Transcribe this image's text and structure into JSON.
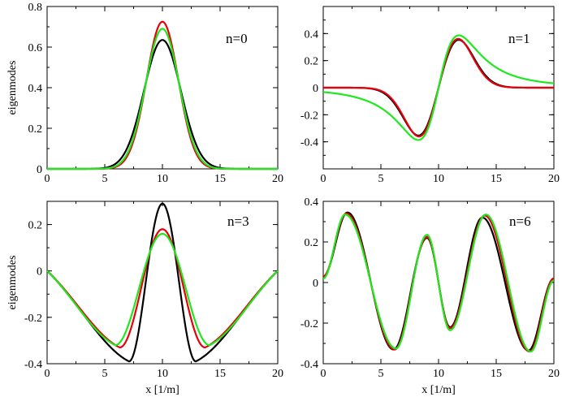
{
  "chart_data": [
    {
      "type": "line",
      "panel_label": "n=0",
      "xlabel": "",
      "ylabel": "eigenmodes",
      "xlim": [
        0,
        20
      ],
      "ylim": [
        0,
        0.8
      ],
      "xticks": [
        0,
        5,
        10,
        15,
        20
      ],
      "xtick_labels": [
        "0",
        "5",
        "10",
        "15",
        "20"
      ],
      "yticks": [
        0,
        0.2,
        0.4,
        0.6,
        0.8
      ],
      "ytick_labels": [
        "0",
        "0.2",
        "0.4",
        "0.6",
        "0.8"
      ],
      "colors": {
        "black": "#000000",
        "red": "#e8000b",
        "green": "#1ee81e"
      },
      "series": [
        {
          "color": "#000000",
          "shape": "gauss",
          "center": 10,
          "amp": 0.635,
          "width": 1.6
        },
        {
          "color": "#e8000b",
          "shape": "gauss",
          "center": 10,
          "amp": 0.725,
          "width": 1.38
        },
        {
          "color": "#1ee81e",
          "shape": "gauss",
          "center": 10,
          "amp": 0.69,
          "width": 1.45
        }
      ]
    },
    {
      "type": "line",
      "panel_label": "n=1",
      "xlabel": "",
      "ylabel": "",
      "xlim": [
        0,
        20
      ],
      "ylim": [
        -0.6,
        0.6
      ],
      "xticks": [
        0,
        5,
        10,
        15,
        20
      ],
      "xtick_labels": [
        "0",
        "5",
        "10",
        "15",
        "20"
      ],
      "yticks": [
        -0.4,
        -0.2,
        0,
        0.2,
        0.4
      ],
      "ytick_labels": [
        "-0.4",
        "-0.2",
        "0",
        "0.2",
        "0.4"
      ],
      "series": [
        {
          "color": "#000000",
          "shape": "odd",
          "center": 10,
          "amp": 0.5,
          "width": 1.75
        },
        {
          "color": "#e8000b",
          "shape": "odd",
          "center": 10,
          "amp": 0.51,
          "width": 1.7
        },
        {
          "color": "#1ee81e",
          "shape": "odd_broad",
          "center": 10,
          "amp": 0.47,
          "width": 1.7
        }
      ]
    },
    {
      "type": "line",
      "panel_label": "n=3",
      "xlabel": "x [1/m]",
      "ylabel": "eigenmodes",
      "xlim": [
        0,
        20
      ],
      "ylim": [
        -0.4,
        0.3
      ],
      "xticks": [
        0,
        5,
        10,
        15,
        20
      ],
      "xtick_labels": [
        "0",
        "5",
        "10",
        "15",
        "20"
      ],
      "yticks": [
        -0.4,
        -0.2,
        0,
        0.2
      ],
      "ytick_labels": [
        "-0.4",
        "-0.2",
        "0",
        "0.2"
      ],
      "series": [
        {
          "color": "#000000",
          "min_x": 7.1,
          "min_y": -0.39,
          "peak": 0.29
        },
        {
          "color": "#e8000b",
          "min_x": 6.3,
          "min_y": -0.33,
          "peak": 0.18
        },
        {
          "color": "#1ee81e",
          "min_x": 5.9,
          "min_y": -0.32,
          "peak": 0.16
        }
      ]
    },
    {
      "type": "line",
      "panel_label": "n=6",
      "xlabel": "x [1/m]",
      "ylabel": "",
      "xlim": [
        0,
        20
      ],
      "ylim": [
        -0.4,
        0.4
      ],
      "xticks": [
        0,
        5,
        10,
        15,
        20
      ],
      "xtick_labels": [
        "0",
        "5",
        "10",
        "15",
        "20"
      ],
      "yticks": [
        -0.4,
        -0.2,
        0,
        0.2,
        0.4
      ],
      "ytick_labels": [
        "-0.4",
        "-0.2",
        "0",
        "0.2",
        "0.4"
      ],
      "series": [
        {
          "color": "#000000",
          "extrema": [
            [
              0,
              0.03
            ],
            [
              2.1,
              0.345
            ],
            [
              6.1,
              -0.33
            ],
            [
              9.0,
              0.22
            ],
            [
              11.0,
              -0.22
            ],
            [
              13.8,
              0.32
            ],
            [
              17.8,
              -0.335
            ],
            [
              20,
              0.02
            ]
          ]
        },
        {
          "color": "#e8000b",
          "extrema": [
            [
              0,
              0.03
            ],
            [
              2.0,
              0.34
            ],
            [
              6.2,
              -0.33
            ],
            [
              9.0,
              0.225
            ],
            [
              11.0,
              -0.225
            ],
            [
              14.0,
              0.33
            ],
            [
              17.9,
              -0.34
            ],
            [
              20,
              0.02
            ]
          ]
        },
        {
          "color": "#1ee81e",
          "extrema": [
            [
              0,
              0.02
            ],
            [
              1.9,
              0.335
            ],
            [
              6.3,
              -0.325
            ],
            [
              9.0,
              0.235
            ],
            [
              11.0,
              -0.235
            ],
            [
              14.1,
              0.335
            ],
            [
              18.0,
              -0.34
            ],
            [
              20,
              0.01
            ]
          ]
        }
      ]
    }
  ]
}
